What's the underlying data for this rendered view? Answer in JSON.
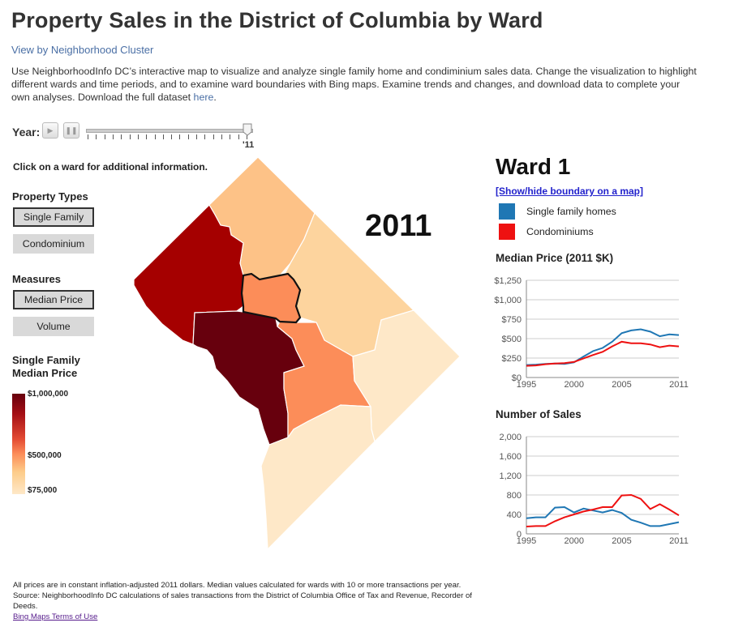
{
  "header": {
    "title": "Property Sales in the District of Columbia by Ward",
    "cluster_link": "View by Neighborhood Cluster",
    "description": "Use NeighborhoodInfo DC’s interactive map to visualize and analyze single family home and condiminium sales data. Change the visualization to highlight different wards and time periods, and to examine ward boundaries with Bing maps. Examine trends and changes, and download data to complete your own analyses. Download the full dataset ",
    "here_link": "here",
    "description_end": "."
  },
  "timeline": {
    "label": "Year:",
    "play_icon": "play-icon",
    "pause_icon": "pause-icon",
    "current_tick_label": "'11",
    "tick_count": 20
  },
  "left_panel": {
    "click_info": "Click on a ward for additional information.",
    "property_types_heading": "Property Types",
    "property_types": [
      "Single Family",
      "Condominium"
    ],
    "property_type_selected": "Single Family",
    "measures_heading": "Measures",
    "measures": [
      "Median Price",
      "Volume"
    ],
    "measure_selected": "Median Price",
    "legend_title_line1": "Single Family",
    "legend_title_line2": "Median Price",
    "legend_max": "$1,000,000",
    "legend_mid": "$500,000",
    "legend_min": "$75,000"
  },
  "map": {
    "year_label": "2011",
    "selected_ward": "Ward 1",
    "ward_colors": {
      "ward1": "#fc8d59",
      "ward2": "#67000d",
      "ward3": "#a50000",
      "ward4": "#fdc287",
      "ward5": "#fdd49e",
      "ward6": "#fc8d59",
      "ward7": "#fee8c8",
      "ward8": "#fee8c8"
    }
  },
  "ward_panel": {
    "title": "Ward 1",
    "boundary_link": "[Show/hide boundary on a map]",
    "series": [
      {
        "name": "Single family homes",
        "color": "#1f77b4"
      },
      {
        "name": "Condominiums",
        "color": "#ee1111"
      }
    ]
  },
  "chart_data": [
    {
      "type": "line",
      "title": "Median Price (2011 $K)",
      "x": [
        1995,
        1996,
        1997,
        1998,
        1999,
        2000,
        2001,
        2002,
        2003,
        2004,
        2005,
        2006,
        2007,
        2008,
        2009,
        2010,
        2011
      ],
      "series": [
        {
          "name": "Single family homes",
          "values": [
            160,
            165,
            175,
            180,
            175,
            195,
            270,
            340,
            380,
            460,
            570,
            605,
            620,
            590,
            530,
            555,
            545
          ]
        },
        {
          "name": "Condominiums",
          "values": [
            150,
            155,
            170,
            180,
            185,
            200,
            245,
            290,
            330,
            400,
            460,
            440,
            440,
            425,
            390,
            410,
            400
          ]
        }
      ],
      "xticks": [
        "1995",
        "2000",
        "2005",
        "2011"
      ],
      "xtick_values": [
        1995,
        2000,
        2005,
        2011
      ],
      "yticks": [
        "$0",
        "$250",
        "$500",
        "$750",
        "$1,000",
        "$1,250"
      ],
      "ytick_values": [
        0,
        250,
        500,
        750,
        1000,
        1250
      ],
      "ylim": [
        0,
        1250
      ],
      "xlim": [
        1995,
        2011
      ],
      "grid": true
    },
    {
      "type": "line",
      "title": "Number of Sales",
      "x": [
        1995,
        1996,
        1997,
        1998,
        1999,
        2000,
        2001,
        2002,
        2003,
        2004,
        2005,
        2006,
        2007,
        2008,
        2009,
        2010,
        2011
      ],
      "series": [
        {
          "name": "Single family homes",
          "values": [
            320,
            340,
            340,
            540,
            550,
            440,
            520,
            480,
            440,
            490,
            430,
            290,
            230,
            160,
            160,
            200,
            240
          ]
        },
        {
          "name": "Condominiums",
          "values": [
            150,
            160,
            160,
            260,
            340,
            400,
            460,
            500,
            550,
            550,
            790,
            800,
            720,
            510,
            610,
            500,
            380
          ]
        }
      ],
      "xticks": [
        "1995",
        "2000",
        "2005",
        "2011"
      ],
      "xtick_values": [
        1995,
        2000,
        2005,
        2011
      ],
      "yticks": [
        "0",
        "400",
        "800",
        "1,200",
        "1,600",
        "2,000"
      ],
      "ytick_values": [
        0,
        400,
        800,
        1200,
        1600,
        2000
      ],
      "ylim": [
        0,
        2000
      ],
      "xlim": [
        1995,
        2011
      ],
      "grid": true
    }
  ],
  "footer": {
    "note": "All prices are in constant inflation-adjusted 2011 dollars. Median values calculated for wards with 10 or more transactions per year. Source: NeighborhoodInfo DC calculations of sales transactions from the District of Columbia Office of Tax and Revenue, Recorder of Deeds.",
    "bing_link": "Bing Maps Terms of Use"
  }
}
